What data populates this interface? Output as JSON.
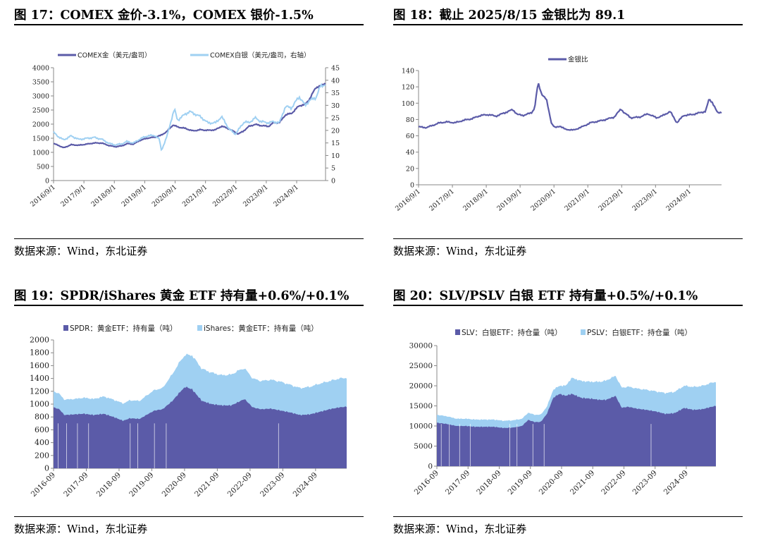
{
  "source_text": "数据来源：Wind，东北证券",
  "colors": {
    "gold": "#5b5ba8",
    "silver": "#9fd0f2",
    "axis": "#999999"
  },
  "chart_data": [
    {
      "id": "fig17",
      "type": "line",
      "title": "图 17：COMEX 金价-3.1%，COMEX 银价-1.5%",
      "legend_position": "top",
      "x_tick_labels": [
        "2016/9/1",
        "2017/9/1",
        "2018/9/1",
        "2019/9/1",
        "2020/9/1",
        "2021/9/1",
        "2022/9/1",
        "2023/9/1",
        "2024/9/1"
      ],
      "x_range": [
        2016.67,
        2025.62
      ],
      "y_left": {
        "ticks": [
          "0",
          "500",
          "1000",
          "1500",
          "2000",
          "2500",
          "3000",
          "3500",
          "4000"
        ],
        "ylim": [
          0,
          4000
        ]
      },
      "y_right": {
        "ticks": [
          "0",
          "5",
          "10",
          "15",
          "20",
          "25",
          "30",
          "35",
          "40",
          "45"
        ],
        "ylim": [
          0,
          45
        ]
      },
      "grid": false,
      "series": [
        {
          "name": "COMEX金（美元/盎司）",
          "axis": "left",
          "color": "#5b5ba8",
          "x": [
            2016.67,
            2016.83,
            2017.0,
            2017.25,
            2017.5,
            2017.75,
            2018.0,
            2018.25,
            2018.5,
            2018.7,
            2018.9,
            2019.1,
            2019.3,
            2019.5,
            2019.75,
            2020.0,
            2020.2,
            2020.4,
            2020.6,
            2020.75,
            2021.0,
            2021.25,
            2021.5,
            2021.75,
            2022.0,
            2022.2,
            2022.45,
            2022.75,
            2022.9,
            2023.1,
            2023.3,
            2023.5,
            2023.75,
            2023.9,
            2024.1,
            2024.3,
            2024.5,
            2024.75,
            2024.95,
            2025.1,
            2025.3,
            2025.45,
            2025.62
          ],
          "y": [
            1310,
            1250,
            1160,
            1270,
            1250,
            1290,
            1330,
            1330,
            1240,
            1200,
            1225,
            1310,
            1290,
            1420,
            1500,
            1540,
            1600,
            1740,
            1970,
            1900,
            1850,
            1760,
            1800,
            1780,
            1800,
            1930,
            1830,
            1650,
            1740,
            1920,
            1990,
            1950,
            1920,
            2050,
            2050,
            2330,
            2380,
            2650,
            2700,
            2900,
            3300,
            3350,
            3450
          ]
        },
        {
          "name": "COMEX白银（美元/盎司，右轴）",
          "axis": "right",
          "color": "#9fd0f2",
          "x": [
            2016.67,
            2016.83,
            2017.0,
            2017.25,
            2017.5,
            2017.75,
            2018.0,
            2018.25,
            2018.5,
            2018.7,
            2018.9,
            2019.1,
            2019.3,
            2019.5,
            2019.75,
            2020.0,
            2020.15,
            2020.22,
            2020.4,
            2020.55,
            2020.65,
            2020.75,
            2021.0,
            2021.15,
            2021.5,
            2021.75,
            2022.0,
            2022.2,
            2022.45,
            2022.65,
            2022.8,
            2022.95,
            2023.1,
            2023.3,
            2023.5,
            2023.75,
            2023.9,
            2024.1,
            2024.3,
            2024.5,
            2024.75,
            2024.95,
            2025.1,
            2025.3,
            2025.45,
            2025.62
          ],
          "y": [
            19.2,
            17.5,
            16.2,
            17.8,
            16.4,
            16.8,
            17.2,
            16.5,
            14.8,
            14.2,
            14.6,
            15.6,
            14.9,
            16.5,
            17.8,
            18.0,
            16.5,
            12.0,
            17.5,
            24.5,
            28.5,
            24.0,
            26.5,
            27.5,
            25.5,
            23.0,
            23.0,
            25.5,
            20.5,
            18.5,
            21.0,
            23.5,
            23.0,
            25.0,
            23.5,
            23.0,
            23.5,
            23.0,
            29.5,
            29.0,
            33.5,
            30.0,
            32.0,
            33.0,
            37.5,
            38.5
          ]
        }
      ]
    },
    {
      "id": "fig18",
      "type": "line",
      "title": "图 18：截止 2025/8/15 金银比为 89.1",
      "legend_position": "top",
      "x_tick_labels": [
        "2016/9/1",
        "2017/9/1",
        "2018/9/1",
        "2019/9/1",
        "2020/9/1",
        "2021/9/1",
        "2022/9/1",
        "2023/9/1",
        "2024/9/1"
      ],
      "x_range": [
        2016.67,
        2025.62
      ],
      "y_left": {
        "ticks": [
          "0",
          "20",
          "40",
          "60",
          "80",
          "100",
          "120",
          "140"
        ],
        "ylim": [
          0,
          140
        ]
      },
      "grid": false,
      "series": [
        {
          "name": "金银比",
          "axis": "left",
          "color": "#5b5ba8",
          "x": [
            2016.67,
            2016.9,
            2017.1,
            2017.3,
            2017.5,
            2017.75,
            2018.0,
            2018.25,
            2018.5,
            2018.75,
            2018.95,
            2019.2,
            2019.45,
            2019.6,
            2019.75,
            2020.0,
            2020.1,
            2020.2,
            2020.3,
            2020.45,
            2020.6,
            2020.7,
            2020.85,
            2021.0,
            2021.25,
            2021.5,
            2021.75,
            2022.0,
            2022.2,
            2022.45,
            2022.65,
            2022.75,
            2022.95,
            2023.2,
            2023.45,
            2023.7,
            2023.9,
            2024.1,
            2024.3,
            2024.5,
            2024.75,
            2024.95,
            2025.15,
            2025.25,
            2025.35,
            2025.5,
            2025.62
          ],
          "y": [
            71,
            70,
            73,
            76,
            77,
            76,
            79,
            81,
            85,
            86,
            84,
            88,
            92,
            86,
            85,
            88,
            94,
            125,
            112,
            104,
            75,
            70,
            72,
            68,
            67,
            71,
            76,
            78,
            80,
            83,
            93,
            88,
            82,
            83,
            87,
            82,
            85,
            90,
            76,
            85,
            86,
            88,
            90,
            105,
            101,
            88,
            89.1
          ]
        }
      ]
    },
    {
      "id": "fig19",
      "type": "area",
      "stacked": true,
      "title": "图 19：SPDR/iShares 黄金 ETF 持有量+0.6%/+0.1%",
      "legend_position": "top",
      "x_tick_labels": [
        "2016-09",
        "2017-09",
        "2018-09",
        "2019-09",
        "2020-09",
        "2021-09",
        "2022-09",
        "2023-09",
        "2024-09"
      ],
      "x_range": [
        2016.67,
        2025.62
      ],
      "y_left": {
        "ticks": [
          "0",
          "200",
          "400",
          "600",
          "800",
          "1000",
          "1200",
          "1400",
          "1600",
          "1800",
          "2000"
        ],
        "ylim": [
          0,
          2000
        ]
      },
      "grid": false,
      "series": [
        {
          "name": "SPDR：黄金ETF：持有量（吨）",
          "color": "#5b5ba8",
          "x": [
            2016.67,
            2016.85,
            2017.0,
            2017.3,
            2017.6,
            2017.9,
            2018.2,
            2018.5,
            2018.8,
            2019.0,
            2019.3,
            2019.5,
            2019.75,
            2020.0,
            2020.3,
            2020.55,
            2020.7,
            2020.9,
            2021.2,
            2021.5,
            2021.8,
            2022.1,
            2022.3,
            2022.5,
            2022.75,
            2023.0,
            2023.3,
            2023.6,
            2023.9,
            2024.2,
            2024.5,
            2024.8,
            2025.1,
            2025.4,
            2025.62
          ],
          "y": [
            950,
            920,
            830,
            840,
            850,
            830,
            850,
            800,
            740,
            780,
            770,
            830,
            900,
            920,
            1050,
            1200,
            1270,
            1230,
            1050,
            1000,
            980,
            980,
            1030,
            1080,
            950,
            920,
            930,
            900,
            870,
            830,
            840,
            880,
            920,
            950,
            960
          ]
        },
        {
          "name": "iShares：黄金ETF：持有量（吨）",
          "color": "#9fd0f2",
          "x": [
            2016.67,
            2016.85,
            2017.0,
            2017.3,
            2017.6,
            2017.9,
            2018.2,
            2018.5,
            2018.8,
            2019.0,
            2019.3,
            2019.5,
            2019.75,
            2020.0,
            2020.3,
            2020.55,
            2020.7,
            2020.9,
            2021.2,
            2021.5,
            2021.8,
            2022.1,
            2022.3,
            2022.5,
            2022.75,
            2023.0,
            2023.3,
            2023.6,
            2023.9,
            2024.2,
            2024.5,
            2024.8,
            2025.1,
            2025.4,
            2025.62
          ],
          "y": [
            250,
            240,
            240,
            240,
            250,
            250,
            270,
            270,
            270,
            280,
            280,
            300,
            320,
            330,
            420,
            480,
            500,
            530,
            500,
            490,
            470,
            480,
            490,
            480,
            450,
            440,
            450,
            450,
            430,
            420,
            430,
            440,
            440,
            450,
            450
          ]
        }
      ]
    },
    {
      "id": "fig20",
      "type": "area",
      "stacked": true,
      "title": "图 20：SLV/PSLV 白银 ETF 持有量+0.5%/+0.1%",
      "legend_position": "top",
      "x_tick_labels": [
        "2016-09",
        "2017-09",
        "2018-09",
        "2019-09",
        "2020-09",
        "2021-09",
        "2022-09",
        "2023-09",
        "2024-09"
      ],
      "x_range": [
        2016.67,
        2025.62
      ],
      "y_left": {
        "ticks": [
          "0",
          "5000",
          "10000",
          "15000",
          "20000",
          "25000",
          "30000"
        ],
        "ylim": [
          0,
          30000
        ]
      },
      "grid": false,
      "series": [
        {
          "name": "SLV：白银ETF：持仓量（吨）",
          "color": "#5b5ba8",
          "x": [
            2016.67,
            2017.0,
            2017.3,
            2017.6,
            2017.9,
            2018.2,
            2018.5,
            2018.8,
            2019.1,
            2019.4,
            2019.6,
            2019.8,
            2020.0,
            2020.2,
            2020.4,
            2020.6,
            2020.8,
            2021.0,
            2021.3,
            2021.6,
            2021.9,
            2022.1,
            2022.4,
            2022.6,
            2022.8,
            2023.1,
            2023.4,
            2023.7,
            2024.0,
            2024.3,
            2024.6,
            2024.9,
            2025.2,
            2025.5,
            2025.62
          ],
          "y": [
            10800,
            10500,
            10000,
            10000,
            9800,
            9800,
            9800,
            9500,
            9600,
            10000,
            11500,
            11000,
            11000,
            13000,
            17000,
            18000,
            17500,
            18000,
            17000,
            16800,
            16500,
            16500,
            17500,
            14500,
            14800,
            14300,
            14000,
            13600,
            13000,
            13200,
            14500,
            14000,
            14200,
            14800,
            15000
          ]
        },
        {
          "name": "PSLV：白银ETF：持仓量（吨）",
          "color": "#9fd0f2",
          "x": [
            2016.67,
            2017.0,
            2017.3,
            2017.6,
            2017.9,
            2018.2,
            2018.5,
            2018.8,
            2019.1,
            2019.4,
            2019.6,
            2019.8,
            2020.0,
            2020.2,
            2020.4,
            2020.6,
            2020.8,
            2021.0,
            2021.3,
            2021.6,
            2021.9,
            2022.1,
            2022.4,
            2022.6,
            2022.8,
            2023.1,
            2023.4,
            2023.7,
            2024.0,
            2024.3,
            2024.6,
            2024.9,
            2025.2,
            2025.5,
            2025.62
          ],
          "y": [
            2000,
            1900,
            1800,
            1800,
            1800,
            1800,
            1800,
            1800,
            1800,
            1800,
            1800,
            1800,
            1800,
            1800,
            2000,
            2000,
            2500,
            4000,
            4200,
            4200,
            4500,
            4800,
            5000,
            5000,
            5000,
            5000,
            5000,
            5000,
            5200,
            5300,
            5500,
            5700,
            5800,
            6000,
            6000
          ]
        }
      ]
    }
  ]
}
